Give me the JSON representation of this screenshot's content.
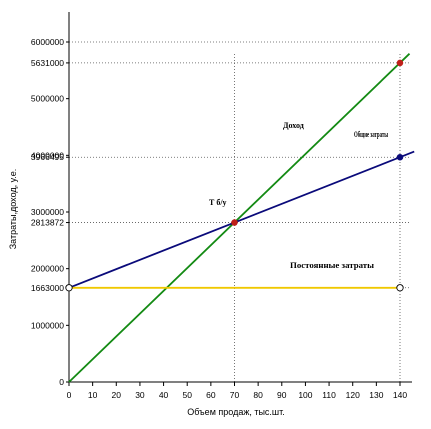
{
  "chart_data": {
    "type": "line",
    "xlabel": "Объем продаж, тыс.шт.",
    "ylabel": "Затраты,доход, у.е.",
    "xlim": [
      0,
      140
    ],
    "ylim": [
      0,
      6000000
    ],
    "x_ticks": [
      0,
      10,
      20,
      30,
      40,
      50,
      60,
      70,
      80,
      90,
      100,
      110,
      120,
      130,
      140
    ],
    "y_ticks": [
      {
        "value": 0,
        "label": "0"
      },
      {
        "value": 1000000,
        "label": "1000000"
      },
      {
        "value": 1663000,
        "label": "1663000"
      },
      {
        "value": 2000000,
        "label": "2000000"
      },
      {
        "value": 2813872,
        "label": "2813872"
      },
      {
        "value": 3000000,
        "label": "3000000"
      },
      {
        "value": 3966495,
        "label": "3966495"
      },
      {
        "value": 4000000,
        "label": "4000000"
      },
      {
        "value": 5000000,
        "label": "5000000"
      },
      {
        "value": 5631000,
        "label": "5631000"
      },
      {
        "value": 6000000,
        "label": "6000000"
      }
    ],
    "series": [
      {
        "name": "Доход",
        "color": "#138a13",
        "x": [
          0,
          144
        ],
        "y": [
          0,
          5793902
        ]
      },
      {
        "name": "Общие затраты",
        "color": "#0a0a7a",
        "x": [
          0,
          146
        ],
        "y": [
          1663000,
          4066380
        ]
      },
      {
        "name": "Постоянные затраты",
        "color": "#f0c800",
        "x": [
          0,
          140
        ],
        "y": [
          1663000,
          1663000
        ]
      }
    ],
    "markers": [
      {
        "x": 70,
        "y": 2813872,
        "color": "#c0201a",
        "label": "Т б/у"
      },
      {
        "x": 140,
        "y": 5631000,
        "color": "#c0201a"
      },
      {
        "x": 140,
        "y": 3966495,
        "color": "#0a0a7a"
      },
      {
        "x": 0,
        "y": 1663000,
        "color": "#ffffff"
      },
      {
        "x": 140,
        "y": 1663000,
        "color": "#ffffff"
      }
    ],
    "reference_lines": {
      "horizontal": [
        6000000,
        5631000,
        3966495,
        2813872,
        1663000
      ],
      "vertical": [
        70,
        140
      ]
    },
    "grid": false,
    "legend": "none"
  }
}
